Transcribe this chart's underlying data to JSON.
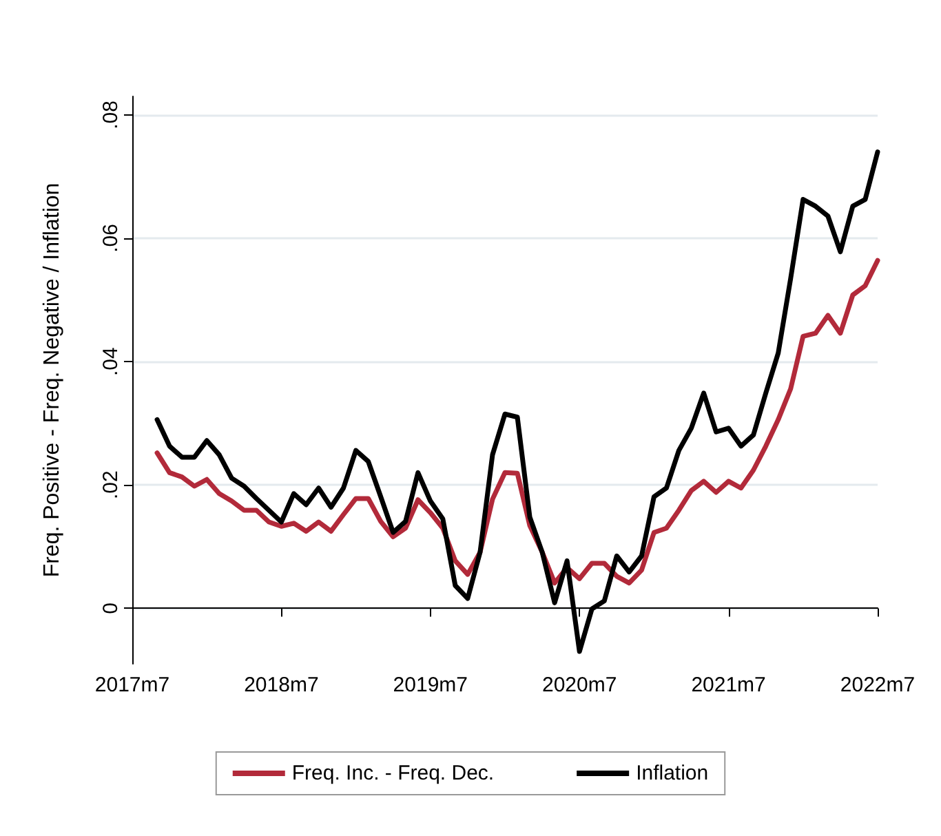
{
  "chart_data": {
    "type": "line",
    "ylabel": "Freq. Positive - Freq. Negative / Inflation",
    "x": [
      "2017-09",
      "2017-10",
      "2017-11",
      "2017-12",
      "2018-01",
      "2018-02",
      "2018-03",
      "2018-04",
      "2018-05",
      "2018-06",
      "2018-07",
      "2018-08",
      "2018-09",
      "2018-10",
      "2018-11",
      "2018-12",
      "2019-01",
      "2019-02",
      "2019-03",
      "2019-04",
      "2019-05",
      "2019-06",
      "2019-07",
      "2019-08",
      "2019-09",
      "2019-10",
      "2019-11",
      "2019-12",
      "2020-01",
      "2020-02",
      "2020-03",
      "2020-04",
      "2020-05",
      "2020-06",
      "2020-07",
      "2020-08",
      "2020-09",
      "2020-10",
      "2020-11",
      "2020-12",
      "2021-01",
      "2021-02",
      "2021-03",
      "2021-04",
      "2021-05",
      "2021-06",
      "2021-07",
      "2021-08",
      "2021-09",
      "2021-10",
      "2021-11",
      "2021-12",
      "2022-01",
      "2022-02",
      "2022-03",
      "2022-04",
      "2022-05",
      "2022-06",
      "2022-07"
    ],
    "series": [
      {
        "name": "Freq. Inc. - Freq. Dec.",
        "color": "#b22a3a",
        "values": [
          0.0252,
          0.022,
          0.0213,
          0.0198,
          0.0209,
          0.0186,
          0.0174,
          0.0159,
          0.0159,
          0.014,
          0.0133,
          0.0138,
          0.0125,
          0.014,
          0.0125,
          0.0152,
          0.0178,
          0.0178,
          0.0141,
          0.0116,
          0.013,
          0.0176,
          0.0155,
          0.013,
          0.0077,
          0.0055,
          0.0091,
          0.0177,
          0.022,
          0.0219,
          0.0134,
          0.0091,
          0.0041,
          0.0066,
          0.0048,
          0.0073,
          0.0073,
          0.0052,
          0.0041,
          0.0062,
          0.0123,
          0.013,
          0.0159,
          0.0191,
          0.0206,
          0.0188,
          0.0206,
          0.0195,
          0.0224,
          0.0263,
          0.0306,
          0.0356,
          0.0441,
          0.0446,
          0.0475,
          0.0446,
          0.0508,
          0.0523,
          0.0564
        ]
      },
      {
        "name": "Inflation",
        "color": "#000000",
        "values": [
          0.0306,
          0.0263,
          0.0245,
          0.0245,
          0.0272,
          0.0249,
          0.0211,
          0.0198,
          0.0178,
          0.0159,
          0.014,
          0.0186,
          0.0168,
          0.0195,
          0.0164,
          0.0195,
          0.0256,
          0.0238,
          0.0181,
          0.0123,
          0.0141,
          0.022,
          0.0174,
          0.0145,
          0.0037,
          0.0016,
          0.0091,
          0.0249,
          0.0315,
          0.031,
          0.0148,
          0.0091,
          0.0009,
          0.0077,
          -0.007,
          -0.0001,
          0.0012,
          0.0085,
          0.0059,
          0.0085,
          0.0181,
          0.0195,
          0.0256,
          0.0292,
          0.0349,
          0.0286,
          0.0292,
          0.0263,
          0.0281,
          0.0349,
          0.0414,
          0.0535,
          0.0663,
          0.0652,
          0.0636,
          0.0578,
          0.0652,
          0.0663,
          0.074
        ]
      }
    ],
    "xlim": [
      "2017-07",
      "2022-07"
    ],
    "xticks": [
      {
        "value": "2017-07",
        "label": "2017m7"
      },
      {
        "value": "2018-07",
        "label": "2018m7"
      },
      {
        "value": "2019-07",
        "label": "2019m7"
      },
      {
        "value": "2020-07",
        "label": "2020m7"
      },
      {
        "value": "2021-07",
        "label": "2021m7"
      },
      {
        "value": "2022-07",
        "label": "2022m7"
      }
    ],
    "ylim": [
      -0.009,
      0.083
    ],
    "yticks": [
      {
        "value": 0,
        "label": "0"
      },
      {
        "value": 0.02,
        "label": ".02"
      },
      {
        "value": 0.04,
        "label": ".04"
      },
      {
        "value": 0.06,
        "label": ".06"
      },
      {
        "value": 0.08,
        "label": ".08"
      }
    ],
    "grid": "y",
    "legend": "bottom",
    "line_style": "solid",
    "marker": "none"
  }
}
